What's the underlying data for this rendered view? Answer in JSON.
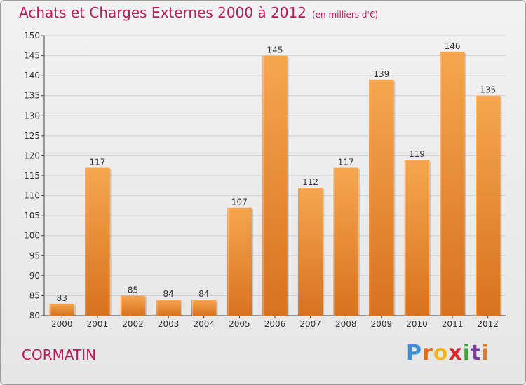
{
  "title": "Achats et Charges Externes 2000 à 2012",
  "subtitle": "(en milliers d'€)",
  "commune": "CORMATIN",
  "logo": {
    "letters": [
      "P",
      "r",
      "o",
      "x",
      "i",
      "t",
      "i"
    ],
    "colors": [
      "#3b8fd6",
      "#e06a1a",
      "#f2b51c",
      "#d9262c",
      "#3aa935",
      "#7a3f9d",
      "#e8791f"
    ]
  },
  "colors": {
    "bar_light": "#f6a650",
    "bar_dark": "#d8721e",
    "title": "#c0195a",
    "grid": "#cfcfcf",
    "axis": "#444444"
  },
  "chart_data": {
    "type": "bar",
    "categories": [
      "2000",
      "2001",
      "2002",
      "2003",
      "2004",
      "2005",
      "2006",
      "2007",
      "2008",
      "2009",
      "2010",
      "2011",
      "2012"
    ],
    "values": [
      83,
      117,
      85,
      84,
      84,
      107,
      145,
      112,
      117,
      139,
      119,
      146,
      135
    ],
    "ylim": [
      80,
      150
    ],
    "yticks": [
      80,
      85,
      90,
      95,
      100,
      105,
      110,
      115,
      120,
      125,
      130,
      135,
      140,
      145,
      150
    ],
    "grid": true,
    "xlabel": "",
    "ylabel": ""
  }
}
